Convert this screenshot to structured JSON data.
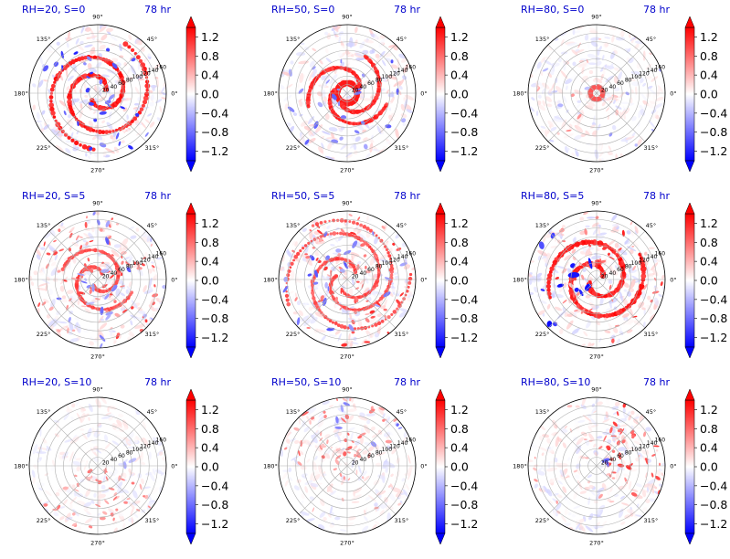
{
  "figure": {
    "colorbar": {
      "ticks": [
        "1.2",
        "0.8",
        "0.4",
        "0.0",
        "−0.4",
        "−0.8",
        "−1.2"
      ],
      "tick_values": [
        1.2,
        0.8,
        0.4,
        0.0,
        -0.4,
        -0.8,
        -1.2
      ],
      "range": [
        -1.4,
        1.4
      ],
      "colormap": "bwr",
      "colors": {
        "low": "#0000ff",
        "mid": "#ffffff",
        "high": "#ff0000"
      }
    },
    "angle_labels": [
      "0°",
      "45°",
      "90°",
      "135°",
      "180°",
      "225°",
      "270°",
      "315°"
    ],
    "radial_labels": [
      "20",
      "40",
      "60",
      "80",
      "100",
      "120",
      "140",
      "160"
    ],
    "title_color": "#0000cc"
  },
  "chart_data": [
    {
      "type": "heatmap",
      "projection": "polar",
      "title_left": "RH=20, S=0",
      "title_right": "78 hr",
      "rmax": 160,
      "radial_ticks": [
        20,
        40,
        60,
        80,
        100,
        120,
        140,
        160
      ],
      "angle_ticks_deg": [
        0,
        45,
        90,
        135,
        180,
        225,
        270,
        315
      ],
      "pattern": "strong spiral rainband",
      "intensity": 1.0
    },
    {
      "type": "heatmap",
      "projection": "polar",
      "title_left": "RH=50, S=0",
      "title_right": "78 hr",
      "rmax": 160,
      "radial_ticks": [
        20,
        40,
        60,
        80,
        100,
        120,
        140,
        160
      ],
      "angle_ticks_deg": [
        0,
        45,
        90,
        135,
        180,
        225,
        270,
        315
      ],
      "pattern": "compact eyewall ring with short bands",
      "intensity": 0.95
    },
    {
      "type": "heatmap",
      "projection": "polar",
      "title_left": "RH=80, S=0",
      "title_right": "78 hr",
      "rmax": 160,
      "radial_ticks": [
        20,
        40,
        60,
        80,
        100,
        120,
        140,
        160
      ],
      "angle_ticks_deg": [
        0,
        45,
        90,
        135,
        180,
        225,
        270,
        315
      ],
      "pattern": "small eyewall ring, weak outer field",
      "intensity": 0.7
    },
    {
      "type": "heatmap",
      "projection": "polar",
      "title_left": "RH=20, S=5",
      "title_right": "78 hr",
      "rmax": 160,
      "radial_ticks": [
        20,
        40,
        60,
        80,
        100,
        120,
        140,
        160
      ],
      "angle_ticks_deg": [
        0,
        45,
        90,
        135,
        180,
        225,
        270,
        315
      ],
      "pattern": "scattered cells with weak spiral",
      "intensity": 0.8
    },
    {
      "type": "heatmap",
      "projection": "polar",
      "title_left": "RH=50, S=5",
      "title_right": "78 hr",
      "rmax": 160,
      "radial_ticks": [
        20,
        40,
        60,
        80,
        100,
        120,
        140,
        160
      ],
      "angle_ticks_deg": [
        0,
        45,
        90,
        135,
        180,
        225,
        270,
        315
      ],
      "pattern": "broken spiral bands with scattered cells",
      "intensity": 0.85
    },
    {
      "type": "heatmap",
      "projection": "polar",
      "title_left": "RH=80, S=5",
      "title_right": "78 hr",
      "rmax": 160,
      "radial_ticks": [
        20,
        40,
        60,
        80,
        100,
        120,
        140,
        160
      ],
      "angle_ticks_deg": [
        0,
        45,
        90,
        135,
        180,
        225,
        270,
        315
      ],
      "pattern": "strong spiral with blue bands in west",
      "intensity": 1.0
    },
    {
      "type": "heatmap",
      "projection": "polar",
      "title_left": "RH=20, S=10",
      "title_right": "78 hr",
      "rmax": 160,
      "radial_ticks": [
        20,
        40,
        60,
        80,
        100,
        120,
        140,
        160
      ],
      "angle_ticks_deg": [
        0,
        45,
        90,
        135,
        180,
        225,
        270,
        315
      ],
      "pattern": "sparse cells concentrated south",
      "intensity": 0.55
    },
    {
      "type": "heatmap",
      "projection": "polar",
      "title_left": "RH=50, S=10",
      "title_right": "78 hr",
      "rmax": 160,
      "radial_ticks": [
        20,
        40,
        60,
        80,
        100,
        120,
        140,
        160
      ],
      "angle_ticks_deg": [
        0,
        45,
        90,
        135,
        180,
        225,
        270,
        315
      ],
      "pattern": "cells concentrated north",
      "intensity": 0.65
    },
    {
      "type": "heatmap",
      "projection": "polar",
      "title_left": "RH=80, S=10",
      "title_right": "78 hr",
      "rmax": 160,
      "radial_ticks": [
        20,
        40,
        60,
        80,
        100,
        120,
        140,
        160
      ],
      "angle_ticks_deg": [
        0,
        45,
        90,
        135,
        180,
        225,
        270,
        315
      ],
      "pattern": "dense cells in northeast quadrant",
      "intensity": 0.8
    }
  ]
}
